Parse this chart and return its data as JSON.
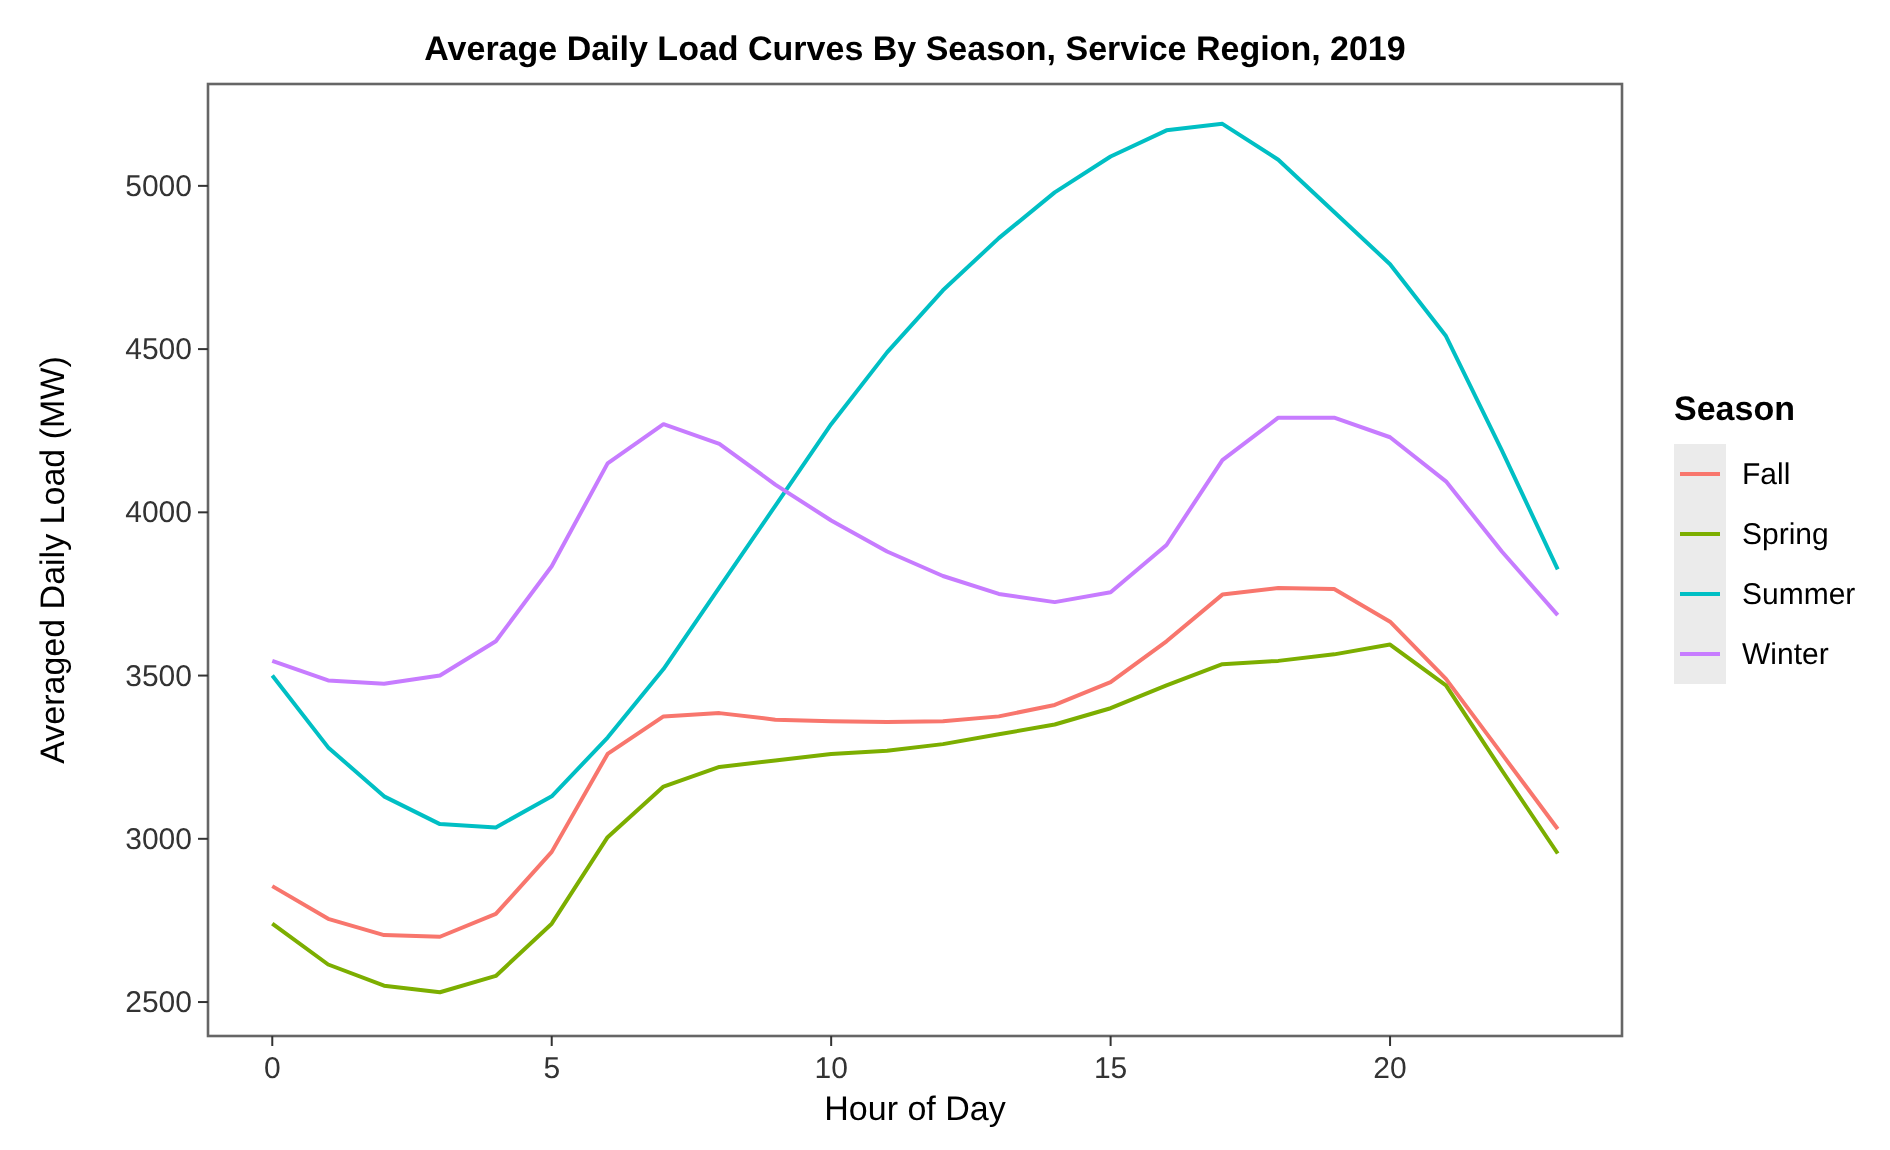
{
  "chart_data": {
    "type": "line",
    "title": "Average Daily Load Curves By Season, Service Region, 2019",
    "xlabel": "Hour of Day",
    "ylabel": "Averaged Daily Load (MW)",
    "legend_title": "Season",
    "legend": "right",
    "grid": false,
    "line_style": "solid",
    "marker": "none",
    "x": [
      0,
      1,
      2,
      3,
      4,
      5,
      6,
      7,
      8,
      9,
      10,
      11,
      12,
      13,
      14,
      15,
      16,
      17,
      18,
      19,
      20,
      21,
      22,
      23
    ],
    "xlim": [
      -1.15,
      24.15
    ],
    "xticks": [
      0,
      5,
      10,
      15,
      20
    ],
    "ylim": [
      2396,
      5312
    ],
    "yticks": [
      2500,
      3000,
      3500,
      4000,
      4500,
      5000
    ],
    "series": [
      {
        "name": "Fall",
        "color": "#f8766d",
        "values": [
          2855,
          2755,
          2705,
          2700,
          2770,
          2960,
          3260,
          3375,
          3385,
          3365,
          3360,
          3358,
          3360,
          3375,
          3410,
          3480,
          3605,
          3748,
          3768,
          3765,
          3665,
          3490,
          3260,
          3030
        ]
      },
      {
        "name": "Spring",
        "color": "#7cae00",
        "values": [
          2740,
          2615,
          2550,
          2530,
          2580,
          2740,
          3005,
          3160,
          3220,
          3240,
          3260,
          3270,
          3290,
          3320,
          3350,
          3400,
          3470,
          3535,
          3545,
          3565,
          3595,
          3470,
          3210,
          2955
        ]
      },
      {
        "name": "Summer",
        "color": "#00bfc4",
        "values": [
          3500,
          3280,
          3130,
          3045,
          3035,
          3130,
          3310,
          3520,
          3770,
          4020,
          4270,
          4490,
          4680,
          4840,
          4980,
          5090,
          5170,
          5190,
          5080,
          4920,
          4760,
          4540,
          4190,
          3825
        ]
      },
      {
        "name": "Winter",
        "color": "#c77cff",
        "values": [
          3545,
          3485,
          3475,
          3500,
          3605,
          3835,
          4150,
          4270,
          4210,
          4085,
          3975,
          3880,
          3805,
          3750,
          3725,
          3755,
          3900,
          4160,
          4290,
          4290,
          4230,
          4095,
          3880,
          3685
        ]
      }
    ]
  }
}
